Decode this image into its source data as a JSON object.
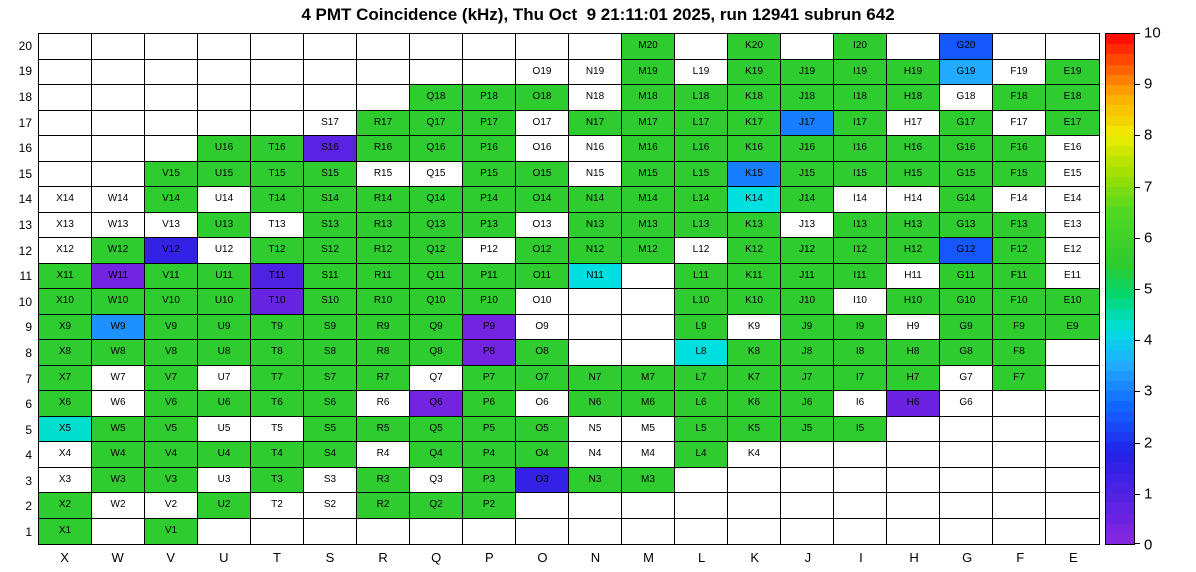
{
  "chart_data": {
    "type": "heatmap",
    "title": "4 PMT Coincidence (kHz), Thu Oct  9 21:11:01 2025, run 12941 subrun 642",
    "x_categories": [
      "X",
      "W",
      "V",
      "U",
      "T",
      "S",
      "R",
      "Q",
      "P",
      "O",
      "N",
      "M",
      "L",
      "K",
      "J",
      "I",
      "H",
      "G",
      "F",
      "E"
    ],
    "y_categories": [
      1,
      2,
      3,
      4,
      5,
      6,
      7,
      8,
      9,
      10,
      11,
      12,
      13,
      14,
      15,
      16,
      17,
      18,
      19,
      20
    ],
    "zlim": [
      0,
      10
    ],
    "colorbar_ticks": [
      0,
      1,
      2,
      3,
      4,
      5,
      6,
      7,
      8,
      9,
      10
    ],
    "empty_color": "#ffffff",
    "color_stops": [
      [
        0,
        "#8a25e0"
      ],
      [
        0.9,
        "#5422e2"
      ],
      [
        1.8,
        "#2222e8"
      ],
      [
        2.7,
        "#1166ff"
      ],
      [
        3.5,
        "#22aaff"
      ],
      [
        4.2,
        "#00dfdf"
      ],
      [
        4.8,
        "#00d878"
      ],
      [
        5.5,
        "#2ecc2e"
      ],
      [
        6.5,
        "#4fd824"
      ],
      [
        7.3,
        "#a4e000"
      ],
      [
        8,
        "#eeee00"
      ],
      [
        8.8,
        "#ffaa00"
      ],
      [
        9.4,
        "#ff5500"
      ],
      [
        10,
        "#ff0000"
      ]
    ],
    "rows": [
      {
        "row": 20,
        "cells": {
          "M": 5.5,
          "K": 5.5,
          "I": 5.5,
          "G": 2.5
        }
      },
      {
        "row": 19,
        "cells": {
          "O": 0,
          "N": 0,
          "M": 5.5,
          "L": 0,
          "K": 5.5,
          "J": 5.5,
          "I": 5.5,
          "H": 5.5,
          "G": 3.5,
          "F": 0,
          "E": 5.5
        }
      },
      {
        "row": 18,
        "cells": {
          "Q": 5.5,
          "P": 5.5,
          "O": 5.5,
          "N": 0,
          "M": 5.5,
          "L": 5.5,
          "K": 5.5,
          "J": 5.5,
          "I": 5.5,
          "H": 5.5,
          "G": 0,
          "F": 5.5,
          "E": 5.5
        }
      },
      {
        "row": 17,
        "cells": {
          "S": 0,
          "R": 5.5,
          "Q": 5.5,
          "P": 5.5,
          "O": 0,
          "N": 5.5,
          "M": 5.5,
          "L": 5.5,
          "K": 5.5,
          "J": 3.0,
          "I": 5.5,
          "H": 0,
          "G": 5.5,
          "F": 0,
          "E": 5.5
        }
      },
      {
        "row": 16,
        "cells": {
          "U": 5.5,
          "T": 5.5,
          "S": 0.8,
          "R": 5.5,
          "Q": 5.5,
          "P": 5.5,
          "O": 0,
          "N": 0,
          "M": 5.5,
          "L": 5.5,
          "K": 5.5,
          "J": 5.5,
          "I": 5.5,
          "H": 5.5,
          "G": 5.5,
          "F": 5.5,
          "E": 0
        }
      },
      {
        "row": 15,
        "cells": {
          "V": 5.5,
          "U": 5.5,
          "T": 5.5,
          "S": 5.5,
          "R": 0,
          "Q": 0,
          "P": 5.5,
          "O": 5.5,
          "N": 0,
          "M": 5.5,
          "L": 5.5,
          "K": 3.0,
          "J": 5.5,
          "I": 5.5,
          "H": 5.5,
          "G": 5.5,
          "F": 5.5,
          "E": 0
        }
      },
      {
        "row": 14,
        "cells": {
          "X": 0,
          "W": 0,
          "V": 5.5,
          "U": 0,
          "T": 5.5,
          "S": 5.5,
          "R": 5.5,
          "Q": 5.5,
          "P": 5.5,
          "O": 5.5,
          "N": 5.5,
          "M": 5.5,
          "L": 5.5,
          "K": 4.2,
          "J": 5.5,
          "I": 0,
          "H": 0,
          "G": 5.5,
          "F": 0,
          "E": 0
        }
      },
      {
        "row": 13,
        "cells": {
          "X": 0,
          "W": 0,
          "V": 0,
          "U": 5.5,
          "T": 0,
          "S": 5.5,
          "R": 5.5,
          "Q": 5.5,
          "P": 5.5,
          "O": 0,
          "N": 5.5,
          "M": 5.5,
          "L": 5.5,
          "K": 5.5,
          "J": 0,
          "I": 5.5,
          "H": 5.5,
          "G": 5.5,
          "F": 5.5,
          "E": 0
        }
      },
      {
        "row": 12,
        "cells": {
          "X": 0,
          "W": 5.5,
          "V": 1.5,
          "U": 0,
          "T": 5.5,
          "S": 5.5,
          "R": 5.5,
          "Q": 5.5,
          "P": 0,
          "O": 5.5,
          "N": 5.5,
          "M": 5.5,
          "L": 0,
          "K": 5.5,
          "J": 5.5,
          "I": 5.5,
          "H": 5.5,
          "G": 2.5,
          "F": 5.5,
          "E": 0
        }
      },
      {
        "row": 11,
        "cells": {
          "X": 5.5,
          "W": 0.4,
          "V": 5.5,
          "U": 5.5,
          "T": 1.0,
          "S": 5.5,
          "R": 5.5,
          "Q": 5.5,
          "P": 5.5,
          "O": 5.5,
          "N": 4.2,
          "L": 5.5,
          "K": 5.5,
          "J": 5.5,
          "I": 5.5,
          "H": 0,
          "G": 5.5,
          "F": 5.5,
          "E": 0
        }
      },
      {
        "row": 10,
        "cells": {
          "X": 5.5,
          "W": 5.5,
          "V": 5.5,
          "U": 5.5,
          "T": 0.6,
          "S": 5.5,
          "R": 5.5,
          "Q": 5.5,
          "P": 5.5,
          "O": 0,
          "L": 5.5,
          "K": 5.5,
          "J": 5.5,
          "I": 0,
          "H": 5.5,
          "G": 5.5,
          "F": 5.5,
          "E": 5.5
        }
      },
      {
        "row": 9,
        "cells": {
          "X": 5.5,
          "W": 3.2,
          "V": 5.5,
          "U": 5.5,
          "T": 5.5,
          "S": 5.5,
          "R": 5.5,
          "Q": 5.5,
          "P": 0.4,
          "O": 0,
          "L": 5.5,
          "K": 0,
          "J": 5.5,
          "I": 5.5,
          "H": 0,
          "G": 5.5,
          "F": 5.5,
          "E": 5.5
        }
      },
      {
        "row": 8,
        "cells": {
          "X": 5.5,
          "W": 5.5,
          "V": 5.5,
          "U": 5.5,
          "T": 5.5,
          "S": 5.5,
          "R": 5.5,
          "Q": 5.5,
          "P": 0.4,
          "O": 5.5,
          "L": 4.2,
          "K": 5.5,
          "J": 5.5,
          "I": 5.5,
          "H": 5.5,
          "G": 5.5,
          "F": 5.5
        }
      },
      {
        "row": 7,
        "cells": {
          "X": 5.5,
          "W": 0,
          "V": 5.5,
          "U": 0,
          "T": 5.5,
          "S": 5.5,
          "R": 5.5,
          "Q": 0,
          "P": 5.5,
          "O": 5.5,
          "N": 5.5,
          "M": 5.5,
          "L": 5.5,
          "K": 5.5,
          "J": 5.5,
          "I": 5.5,
          "H": 5.5,
          "G": 0,
          "F": 5.5
        }
      },
      {
        "row": 6,
        "cells": {
          "X": 5.5,
          "W": 0,
          "V": 5.5,
          "U": 5.5,
          "T": 5.5,
          "S": 5.5,
          "R": 0,
          "Q": 0.4,
          "P": 5.5,
          "O": 0,
          "N": 5.5,
          "M": 5.5,
          "L": 5.5,
          "K": 5.5,
          "J": 5.5,
          "I": 0,
          "H": 0.5,
          "G": 0
        }
      },
      {
        "row": 5,
        "cells": {
          "X": 4.3,
          "W": 5.5,
          "V": 5.5,
          "U": 0,
          "T": 0,
          "S": 5.5,
          "R": 5.5,
          "Q": 5.5,
          "P": 5.5,
          "O": 5.5,
          "N": 0,
          "M": 0,
          "L": 5.5,
          "K": 5.5,
          "J": 5.5,
          "I": 5.5
        }
      },
      {
        "row": 4,
        "cells": {
          "X": 0,
          "W": 5.5,
          "V": 5.5,
          "U": 5.5,
          "T": 5.5,
          "S": 5.5,
          "R": 0,
          "Q": 5.5,
          "P": 5.5,
          "O": 5.5,
          "N": 0,
          "M": 0,
          "L": 5.5,
          "K": 0
        }
      },
      {
        "row": 3,
        "cells": {
          "X": 0,
          "W": 5.5,
          "V": 5.5,
          "U": 0,
          "T": 5.5,
          "S": 0,
          "R": 5.5,
          "Q": 0,
          "P": 5.5,
          "O": 1.5,
          "N": 5.5,
          "M": 5.5
        }
      },
      {
        "row": 2,
        "cells": {
          "X": 5.5,
          "W": 0,
          "V": 0,
          "U": 5.5,
          "T": 0,
          "S": 0,
          "R": 5.5,
          "Q": 5.5,
          "P": 5.5
        }
      },
      {
        "row": 1,
        "cells": {
          "X": 5.5,
          "V": 5.5
        }
      }
    ]
  }
}
